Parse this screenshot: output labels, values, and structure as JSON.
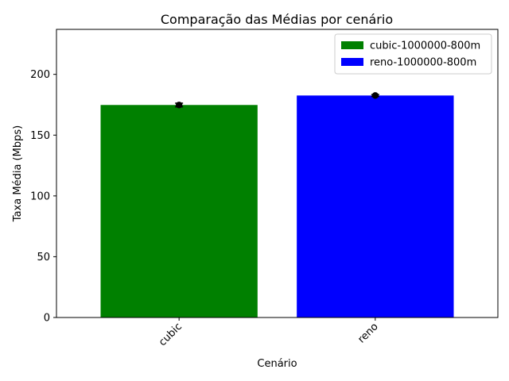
{
  "chart_data": {
    "type": "bar",
    "title": "Comparação das Médias por cenário",
    "xlabel": "Cenário",
    "ylabel": "Taxa Média (Mbps)",
    "categories": [
      "cubic",
      "reno"
    ],
    "values": [
      174.8,
      182.6
    ],
    "errors": [
      1.5,
      0.8
    ],
    "colors": [
      "#008000",
      "#0000ff"
    ],
    "ylim": [
      0,
      237
    ],
    "yticks": [
      0,
      50,
      100,
      150,
      200
    ],
    "xtick_rotation": 45,
    "grid": false,
    "legend": {
      "position": "top-right",
      "entries": [
        {
          "label": "cubic-1000000-800m",
          "color": "#008000"
        },
        {
          "label": "reno-1000000-800m",
          "color": "#0000ff"
        }
      ]
    }
  }
}
